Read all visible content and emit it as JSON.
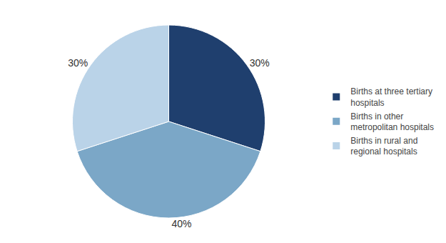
{
  "chart_data": {
    "type": "pie",
    "categories": [
      "Births at three tertiary\nhospitals",
      "Births in other\nmetropolitan hospitals",
      "Births in rural and\nregional hospitals"
    ],
    "values": [
      30,
      40,
      30
    ],
    "value_labels": [
      "30%",
      "40%",
      "30%"
    ],
    "colors": [
      "#1F3F6E",
      "#7BA7C7",
      "#BAD3E8"
    ],
    "data_labels": true,
    "legend": "right"
  }
}
